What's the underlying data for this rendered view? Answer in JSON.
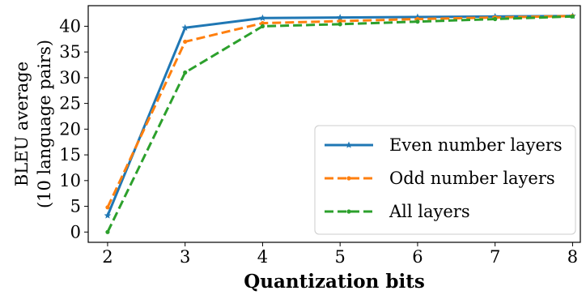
{
  "chart_data": {
    "type": "line",
    "xlabel": "Quantization bits",
    "ylabel_line1": "BLEU average",
    "ylabel_line2": "(10 language pairs)",
    "x": [
      2,
      3,
      4,
      5,
      6,
      7,
      8
    ],
    "xlim": [
      1.75,
      8.1
    ],
    "ylim": [
      -2,
      44
    ],
    "xticks": [
      2,
      3,
      4,
      5,
      6,
      7,
      8
    ],
    "yticks": [
      0,
      5,
      10,
      15,
      20,
      25,
      30,
      35,
      40
    ],
    "grid": false,
    "legend_position": "lower-right",
    "series": [
      {
        "name": "Even number layers",
        "values": [
          3.2,
          39.7,
          41.6,
          41.7,
          41.8,
          41.9,
          42.0
        ],
        "color": "#1f77b4",
        "dash": "solid",
        "marker": "star"
      },
      {
        "name": "Odd number layers",
        "values": [
          4.8,
          37.0,
          40.6,
          41.0,
          41.4,
          41.7,
          42.0
        ],
        "color": "#ff7f0e",
        "dash": "dashed",
        "marker": "dot"
      },
      {
        "name": "All layers",
        "values": [
          0.0,
          31.0,
          40.0,
          40.4,
          40.9,
          41.4,
          41.9
        ],
        "color": "#2ca02c",
        "dash": "dashed",
        "marker": "dot"
      }
    ]
  }
}
